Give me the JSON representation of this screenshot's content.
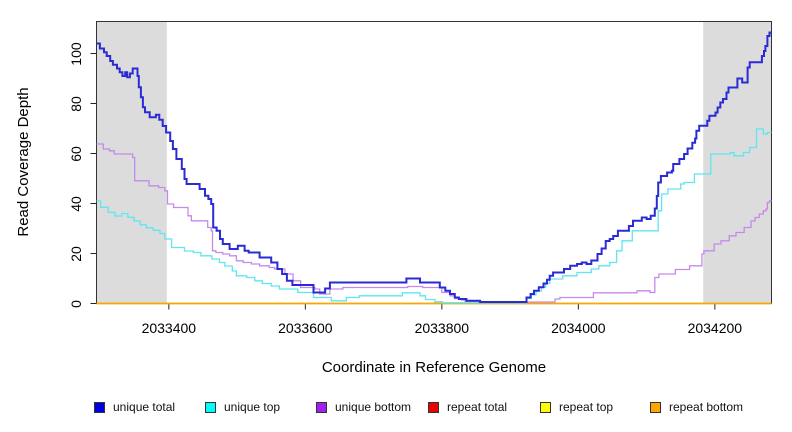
{
  "chart_data": {
    "type": "line",
    "subtype": "step-after",
    "title": "",
    "xlabel": "Coordinate in Reference Genome",
    "ylabel": "Read Coverage Depth",
    "grid": false,
    "legend_position": "bottom",
    "x_axis": {
      "min": 2033294,
      "max": 2034283,
      "ticks": [
        2033400,
        2033600,
        2033800,
        2034000,
        2034200
      ],
      "tick_labels": [
        "2033400",
        "2033600",
        "2033800",
        "2034000",
        "2034200"
      ]
    },
    "y_axis": {
      "min": 0,
      "max": 112.8,
      "ticks": [
        0,
        20,
        40,
        60,
        80,
        100
      ],
      "tick_labels": [
        "0",
        "20",
        "40",
        "60",
        "80",
        "100"
      ]
    },
    "shaded_regions": [
      {
        "name": "left-gray-band",
        "from": 2033294,
        "to": 2033397,
        "color": "#dcdcdc"
      },
      {
        "name": "right-gray-band",
        "from": 2034183,
        "to": 2034283,
        "color": "#dcdcdc"
      }
    ],
    "series": [
      {
        "name": "unique total",
        "color": "#2b2bd5",
        "legend_color": "#0000e0",
        "width": 2,
        "points": [
          [
            2033294,
            104
          ],
          [
            2033299,
            102
          ],
          [
            2033305,
            100.5
          ],
          [
            2033309,
            99
          ],
          [
            2033314,
            97
          ],
          [
            2033318,
            95.5
          ],
          [
            2033324,
            94
          ],
          [
            2033328,
            92.5
          ],
          [
            2033332,
            91
          ],
          [
            2033336,
            92.5
          ],
          [
            2033339,
            90.5
          ],
          [
            2033343,
            92
          ],
          [
            2033347,
            94
          ],
          [
            2033354,
            91
          ],
          [
            2033356,
            86.5
          ],
          [
            2033359,
            82.5
          ],
          [
            2033362,
            78.5
          ],
          [
            2033365,
            76.5
          ],
          [
            2033372,
            74.5
          ],
          [
            2033381,
            75.5
          ],
          [
            2033386,
            73.5
          ],
          [
            2033391,
            71
          ],
          [
            2033396,
            68.4
          ],
          [
            2033402,
            65
          ],
          [
            2033406,
            61.8
          ],
          [
            2033411,
            57.8
          ],
          [
            2033419,
            53.8
          ],
          [
            2033423,
            49.8
          ],
          [
            2033426,
            47.8
          ],
          [
            2033445,
            45.8
          ],
          [
            2033453,
            43.1
          ],
          [
            2033458,
            41.8
          ],
          [
            2033462,
            39.8
          ],
          [
            2033465,
            30.4
          ],
          [
            2033470,
            29.1
          ],
          [
            2033475,
            25.8
          ],
          [
            2033479,
            23.8
          ],
          [
            2033489,
            21.8
          ],
          [
            2033501,
            23.1
          ],
          [
            2033511,
            21.1
          ],
          [
            2033517,
            20.4
          ],
          [
            2033533,
            18.4
          ],
          [
            2033550,
            16.4
          ],
          [
            2033559,
            13.8
          ],
          [
            2033566,
            11.8
          ],
          [
            2033573,
            9.1
          ],
          [
            2033581,
            7.4
          ],
          [
            2033612,
            4.4
          ],
          [
            2033629,
            6
          ],
          [
            2033636,
            8.4
          ],
          [
            2033748,
            10
          ],
          [
            2033768,
            8.4
          ],
          [
            2033797,
            6.4
          ],
          [
            2033805,
            5.1
          ],
          [
            2033812,
            3.8
          ],
          [
            2033819,
            2.4
          ],
          [
            2033825,
            1.8
          ],
          [
            2033836,
            1.1
          ],
          [
            2033856,
            0.6
          ],
          [
            2033924,
            2.4
          ],
          [
            2033930,
            3.8
          ],
          [
            2033935,
            5.1
          ],
          [
            2033942,
            6.5
          ],
          [
            2033949,
            8
          ],
          [
            2033954,
            9.5
          ],
          [
            2033958,
            11.1
          ],
          [
            2033963,
            12.4
          ],
          [
            2033979,
            13.8
          ],
          [
            2033988,
            15.1
          ],
          [
            2033998,
            15.8
          ],
          [
            2034005,
            16.4
          ],
          [
            2034012,
            15.8
          ],
          [
            2034019,
            17.2
          ],
          [
            2034028,
            19.8
          ],
          [
            2034034,
            22
          ],
          [
            2034040,
            25
          ],
          [
            2034046,
            25.8
          ],
          [
            2034051,
            27
          ],
          [
            2034058,
            29.1
          ],
          [
            2034074,
            31
          ],
          [
            2034080,
            33.1
          ],
          [
            2034093,
            34.4
          ],
          [
            2034100,
            33.8
          ],
          [
            2034106,
            35.1
          ],
          [
            2034112,
            38
          ],
          [
            2034115,
            43
          ],
          [
            2034117,
            48.4
          ],
          [
            2034121,
            51
          ],
          [
            2034130,
            52.4
          ],
          [
            2034137,
            53.1
          ],
          [
            2034139,
            55.8
          ],
          [
            2034148,
            57.8
          ],
          [
            2034155,
            59.8
          ],
          [
            2034160,
            62
          ],
          [
            2034167,
            64.3
          ],
          [
            2034171,
            66
          ],
          [
            2034173,
            69.1
          ],
          [
            2034177,
            71.1
          ],
          [
            2034189,
            73.1
          ],
          [
            2034192,
            75.1
          ],
          [
            2034201,
            76.4
          ],
          [
            2034204,
            78.4
          ],
          [
            2034208,
            80.4
          ],
          [
            2034212,
            81.8
          ],
          [
            2034217,
            84.4
          ],
          [
            2034220,
            86.4
          ],
          [
            2034233,
            90
          ],
          [
            2034240,
            88.4
          ],
          [
            2034248,
            94.4
          ],
          [
            2034251,
            96.5
          ],
          [
            2034269,
            99
          ],
          [
            2034272,
            101
          ],
          [
            2034274,
            103
          ],
          [
            2034277,
            107
          ],
          [
            2034280,
            108.4
          ]
        ]
      },
      {
        "name": "unique top",
        "color": "#5fe6ee",
        "legend_color": "#00ffff",
        "width": 1.3,
        "points": [
          [
            2033294,
            41
          ],
          [
            2033300,
            38.5
          ],
          [
            2033311,
            36.5
          ],
          [
            2033321,
            35
          ],
          [
            2033331,
            36
          ],
          [
            2033340,
            34.5
          ],
          [
            2033349,
            33
          ],
          [
            2033358,
            31.5
          ],
          [
            2033367,
            30.3
          ],
          [
            2033377,
            29.3
          ],
          [
            2033387,
            28
          ],
          [
            2033394,
            25.8
          ],
          [
            2033404,
            22.4
          ],
          [
            2033423,
            21
          ],
          [
            2033436,
            20.4
          ],
          [
            2033447,
            19.1
          ],
          [
            2033463,
            17.8
          ],
          [
            2033474,
            16.4
          ],
          [
            2033482,
            15
          ],
          [
            2033493,
            13
          ],
          [
            2033499,
            11.1
          ],
          [
            2033514,
            10.4
          ],
          [
            2033526,
            9.1
          ],
          [
            2033537,
            8
          ],
          [
            2033550,
            7
          ],
          [
            2033562,
            5.8
          ],
          [
            2033589,
            4.4
          ],
          [
            2033612,
            2.4
          ],
          [
            2033638,
            1.1
          ],
          [
            2033660,
            2.4
          ],
          [
            2033679,
            3.1
          ],
          [
            2033742,
            4.3
          ],
          [
            2033768,
            3.1
          ],
          [
            2033776,
            1.6
          ],
          [
            2033790,
            0.7
          ],
          [
            2033801,
            0.3
          ],
          [
            2033924,
            2
          ],
          [
            2033931,
            3.5
          ],
          [
            2033938,
            5
          ],
          [
            2033946,
            6.5
          ],
          [
            2033952,
            8
          ],
          [
            2033958,
            9.8
          ],
          [
            2033977,
            11.1
          ],
          [
            2033998,
            12.4
          ],
          [
            2034019,
            13.8
          ],
          [
            2034030,
            15.1
          ],
          [
            2034046,
            16.4
          ],
          [
            2034056,
            21.1
          ],
          [
            2034064,
            25.1
          ],
          [
            2034079,
            29.1
          ],
          [
            2034117,
            37.1
          ],
          [
            2034122,
            43.8
          ],
          [
            2034131,
            45.8
          ],
          [
            2034150,
            47.8
          ],
          [
            2034155,
            48.4
          ],
          [
            2034170,
            51.8
          ],
          [
            2034194,
            59.8
          ],
          [
            2034223,
            60.4
          ],
          [
            2034228,
            59.1
          ],
          [
            2034242,
            60.4
          ],
          [
            2034251,
            62.4
          ],
          [
            2034261,
            69.8
          ],
          [
            2034271,
            67.8
          ],
          [
            2034277,
            68.4
          ]
        ]
      },
      {
        "name": "unique bottom",
        "color": "#c58ae8",
        "legend_color": "#a020f0",
        "width": 1.3,
        "points": [
          [
            2033294,
            63.8
          ],
          [
            2033304,
            61.8
          ],
          [
            2033313,
            61.1
          ],
          [
            2033320,
            59.8
          ],
          [
            2033347,
            58.4
          ],
          [
            2033350,
            49.1
          ],
          [
            2033371,
            47.1
          ],
          [
            2033385,
            46.4
          ],
          [
            2033394,
            45.1
          ],
          [
            2033398,
            39.8
          ],
          [
            2033407,
            38.4
          ],
          [
            2033428,
            35.1
          ],
          [
            2033433,
            33.1
          ],
          [
            2033457,
            30.4
          ],
          [
            2033462,
            29.1
          ],
          [
            2033464,
            21.1
          ],
          [
            2033469,
            20.4
          ],
          [
            2033479,
            19.8
          ],
          [
            2033489,
            19.1
          ],
          [
            2033499,
            17.1
          ],
          [
            2033509,
            16.4
          ],
          [
            2033521,
            15.8
          ],
          [
            2033533,
            15.1
          ],
          [
            2033547,
            14.4
          ],
          [
            2033555,
            13.8
          ],
          [
            2033570,
            11.8
          ],
          [
            2033582,
            9.1
          ],
          [
            2033593,
            6.4
          ],
          [
            2033614,
            5.8
          ],
          [
            2033621,
            3.8
          ],
          [
            2033636,
            5.8
          ],
          [
            2033655,
            6.4
          ],
          [
            2033750,
            6.8
          ],
          [
            2033772,
            6.4
          ],
          [
            2033800,
            4.4
          ],
          [
            2033812,
            3.1
          ],
          [
            2033819,
            2
          ],
          [
            2033829,
            1.4
          ],
          [
            2033834,
            0.9
          ],
          [
            2033852,
            0.6
          ],
          [
            2033966,
            1.8
          ],
          [
            2033973,
            2.4
          ],
          [
            2034022,
            4.3
          ],
          [
            2034086,
            5.1
          ],
          [
            2034105,
            4.4
          ],
          [
            2034112,
            10.4
          ],
          [
            2034118,
            11.8
          ],
          [
            2034142,
            13.6
          ],
          [
            2034163,
            15.1
          ],
          [
            2034181,
            19.8
          ],
          [
            2034184,
            21.1
          ],
          [
            2034199,
            23.8
          ],
          [
            2034209,
            25.1
          ],
          [
            2034221,
            27.1
          ],
          [
            2034231,
            28.4
          ],
          [
            2034243,
            30.4
          ],
          [
            2034253,
            33
          ],
          [
            2034259,
            34.4
          ],
          [
            2034265,
            35.8
          ],
          [
            2034271,
            37.1
          ],
          [
            2034275,
            37.8
          ],
          [
            2034277,
            40.4
          ],
          [
            2034280,
            41.1
          ]
        ]
      },
      {
        "name": "repeat total",
        "color": "#cc0000",
        "legend_color": "#ee0000",
        "width": 1.3,
        "points": [
          [
            2033294,
            0
          ],
          [
            2034283,
            0
          ]
        ]
      },
      {
        "name": "repeat top",
        "color": "#ffff00",
        "legend_color": "#ffff00",
        "width": 1.3,
        "points": [
          [
            2033294,
            0
          ],
          [
            2034283,
            0
          ]
        ]
      },
      {
        "name": "repeat bottom",
        "color": "#ffa500",
        "legend_color": "#ffa500",
        "width": 1.6,
        "points": [
          [
            2033294,
            0
          ],
          [
            2034283,
            0
          ]
        ]
      }
    ]
  }
}
